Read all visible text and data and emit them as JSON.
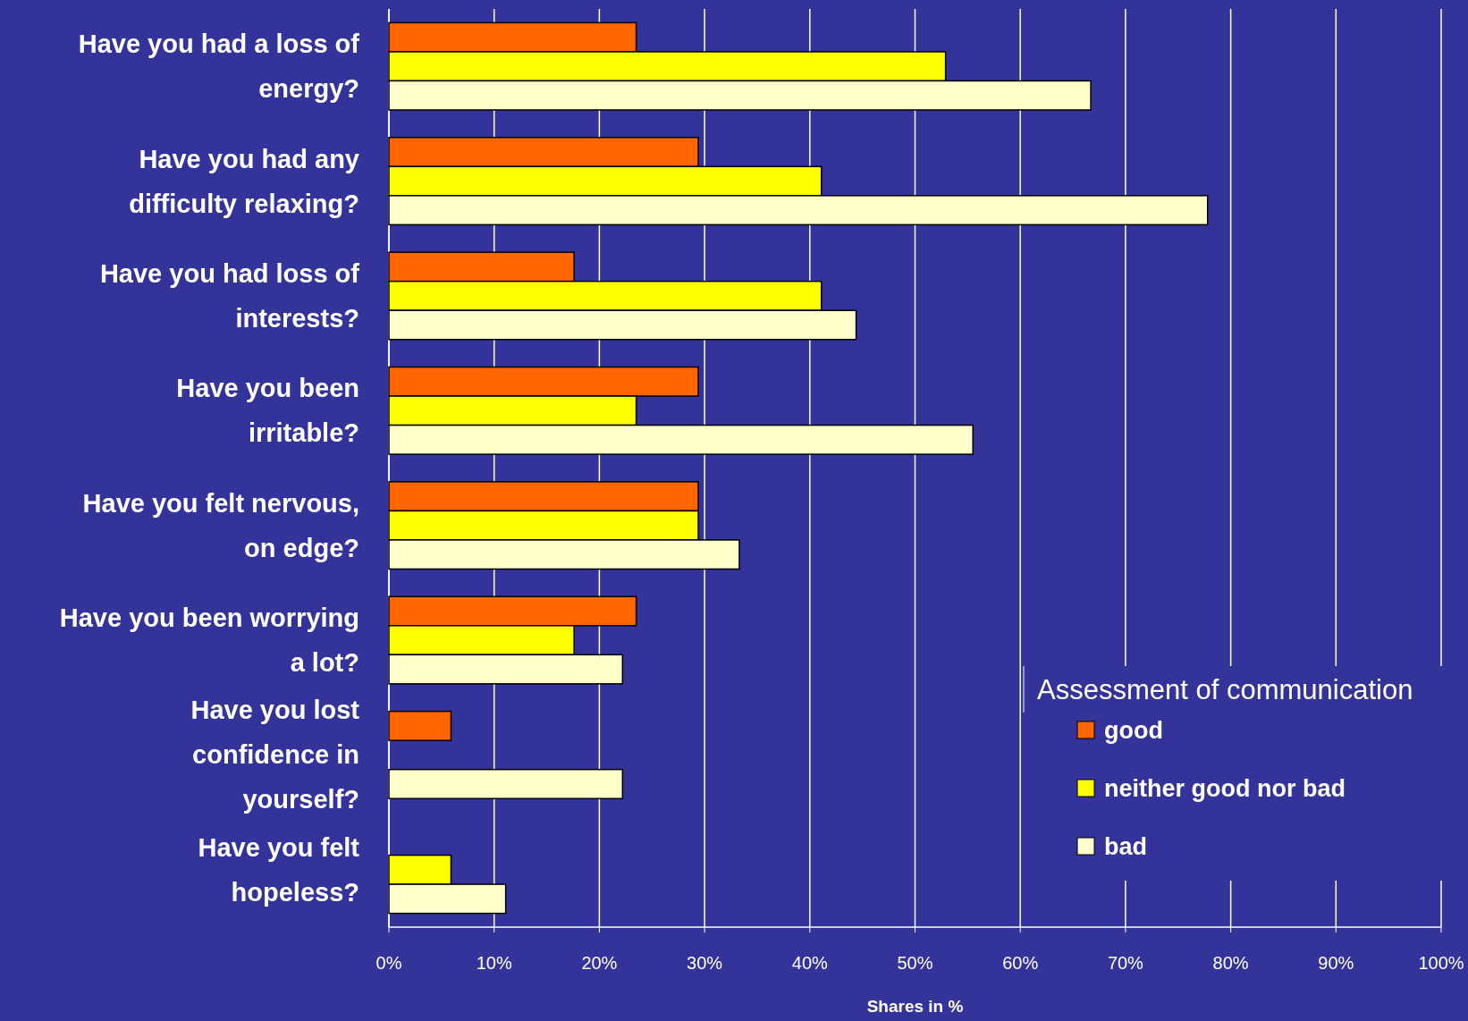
{
  "chart_data": {
    "type": "bar",
    "orientation": "horizontal",
    "xlabel": "Shares in %",
    "legend_title": "Assessment of communication",
    "legend": "bottom right",
    "categories": [
      "Have you had a loss of energy?",
      "Have you had any difficulty relaxing?",
      "Have you had loss of interests?",
      "Have you been irritable?",
      "Have you felt nervous, on edge?",
      "Have you been worrying a lot?",
      "Have you lost confidence in yourself?",
      "Have you felt hopeless?"
    ],
    "series": [
      {
        "name": "good",
        "color": "#ff6600",
        "values": [
          23.5,
          29.4,
          17.6,
          29.4,
          29.4,
          23.5,
          5.9,
          null
        ]
      },
      {
        "name": "neither good nor bad",
        "color": "#ffff00",
        "values": [
          52.9,
          41.1,
          41.1,
          23.5,
          29.4,
          17.6,
          null,
          5.9
        ]
      },
      {
        "name": "bad",
        "color": "#ffffcc",
        "values": [
          66.7,
          77.8,
          44.4,
          55.5,
          33.3,
          22.2,
          22.2,
          11.1
        ]
      }
    ],
    "xlim": [
      0,
      100
    ],
    "xticks": [
      {
        "value": 0,
        "label": "0%"
      },
      {
        "value": 10,
        "label": "10%"
      },
      {
        "value": 20,
        "label": "20%"
      },
      {
        "value": 30,
        "label": "30%"
      },
      {
        "value": 40,
        "label": "40%"
      },
      {
        "value": 50,
        "label": "50%"
      },
      {
        "value": 60,
        "label": "60%"
      },
      {
        "value": 70,
        "label": "70%"
      },
      {
        "value": 80,
        "label": "80%"
      },
      {
        "value": 90,
        "label": "90%"
      },
      {
        "value": 100,
        "label": "100%"
      }
    ],
    "grid": "x"
  }
}
